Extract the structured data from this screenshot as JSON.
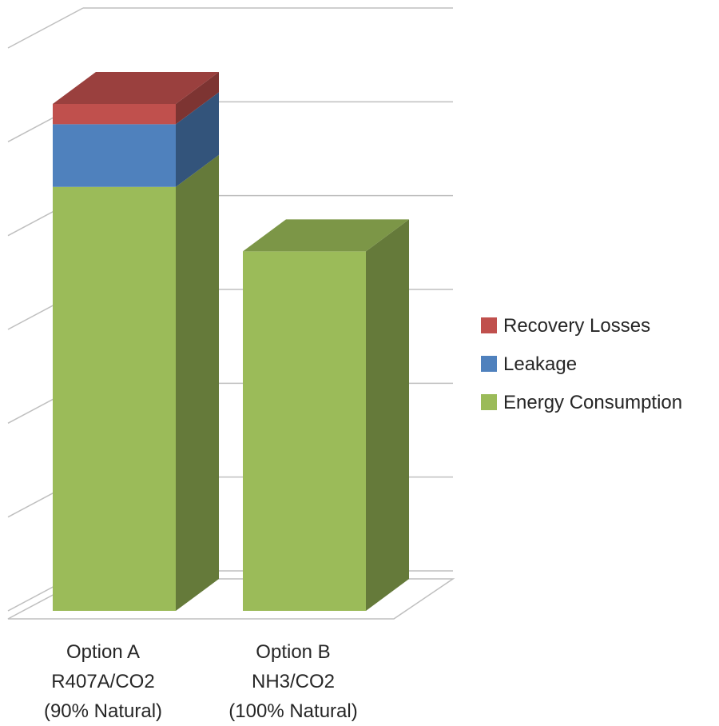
{
  "chart_data": {
    "type": "bar",
    "stacked": true,
    "three_d": true,
    "categories": [
      [
        "Option A",
        "R407A/CO2",
        "(90% Natural)"
      ],
      [
        "Option B",
        "NH3/CO2",
        "(100% Natural)"
      ]
    ],
    "series": [
      {
        "name": "Energy Consumption",
        "values": [
          4.6,
          3.9
        ],
        "color": "#9BBB59"
      },
      {
        "name": "Leakage",
        "values": [
          0.68,
          0
        ],
        "color": "#4F81BD"
      },
      {
        "name": "Recovery Losses",
        "values": [
          0.22,
          0
        ],
        "color": "#C0504D"
      }
    ],
    "legend_order": [
      "Recovery Losses",
      "Leakage",
      "Energy Consumption"
    ],
    "legend_position": "right",
    "ylim": [
      0,
      6
    ],
    "y_gridlines": 6,
    "y_tick_labels_shown": false,
    "grid": true
  }
}
